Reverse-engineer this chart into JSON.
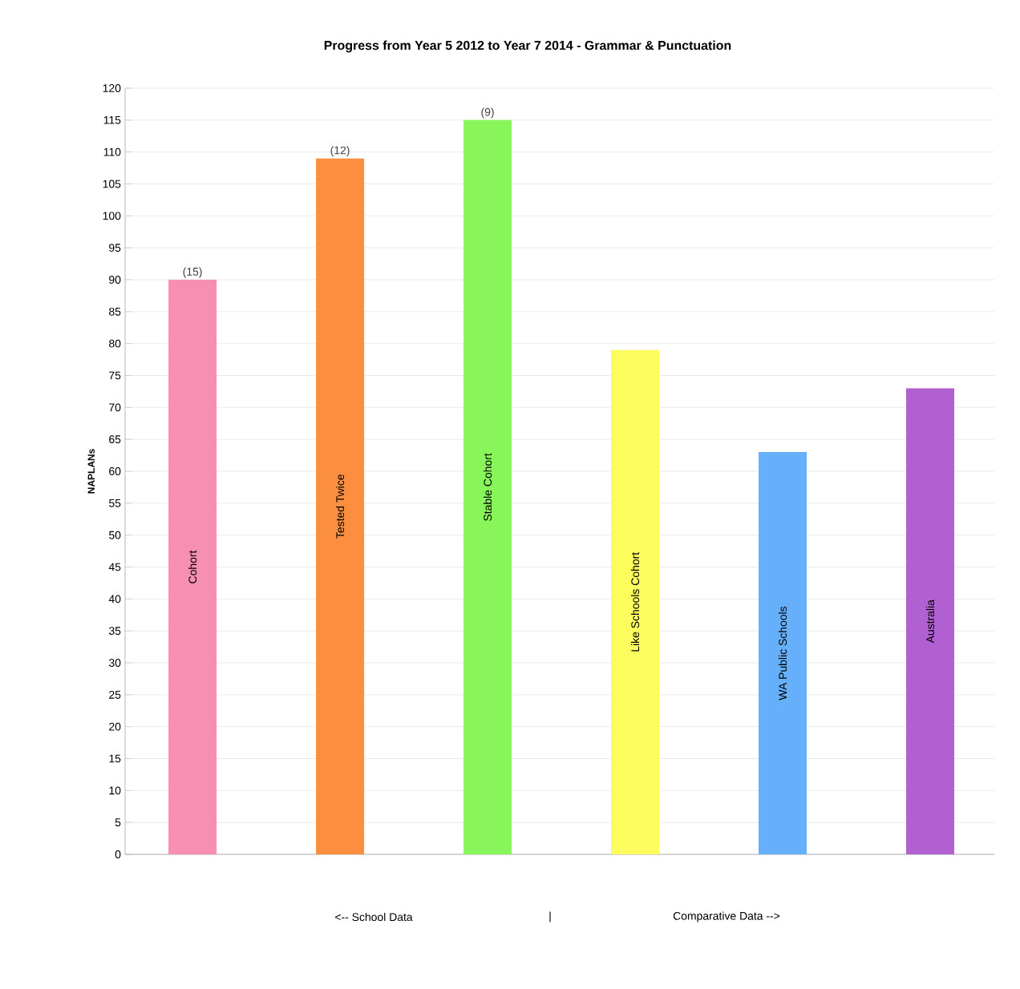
{
  "chart_data": {
    "type": "bar",
    "title": "Progress from Year 5 2012 to Year 7 2014 - Grammar & Punctuation",
    "ylabel": "NAPLANs",
    "categories": [
      "Cohort",
      "Tested Twice",
      "Stable Cohort",
      "Like Schools Cohort",
      "WA Public Schools",
      "Australia"
    ],
    "values": [
      90,
      109,
      115,
      79,
      63,
      73
    ],
    "colors": [
      "#f78fb3",
      "#fb8f3f",
      "#88f55a",
      "#fcfc5e",
      "#66b0fb",
      "#b060d0"
    ],
    "ylim": [
      0,
      120
    ],
    "yticks": [
      0,
      5,
      10,
      15,
      20,
      25,
      30,
      35,
      40,
      45,
      50,
      55,
      60,
      65,
      70,
      75,
      80,
      85,
      90,
      95,
      100,
      105,
      110,
      115,
      120
    ],
    "grid": "y",
    "annotations": [
      {
        "text": "(15)",
        "x": "Cohort",
        "y": 90
      },
      {
        "text": "(12)",
        "x": "Tested Twice",
        "y": 109
      },
      {
        "text": "(9)",
        "x": "Stable Cohort",
        "y": 115
      },
      "<-- School Data",
      "|",
      "Comparative Data -->"
    ]
  }
}
